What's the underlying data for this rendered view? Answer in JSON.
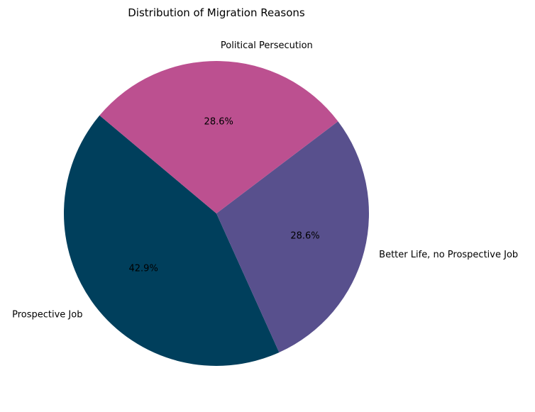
{
  "chart_data": {
    "type": "pie",
    "title": "Distribution of Migration Reasons",
    "slices": [
      {
        "label": "Prospective Job",
        "value": 42.9,
        "pct_label": "42.9%",
        "color": "#003f5c"
      },
      {
        "label": "Better Life, no Prospective Job",
        "value": 28.6,
        "pct_label": "28.6%",
        "color": "#58508d"
      },
      {
        "label": "Political Persecution",
        "value": 28.6,
        "pct_label": "28.6%",
        "color": "#bc5090"
      }
    ],
    "start_angle_deg": 140,
    "direction": "counterclockwise",
    "legend": "none"
  }
}
